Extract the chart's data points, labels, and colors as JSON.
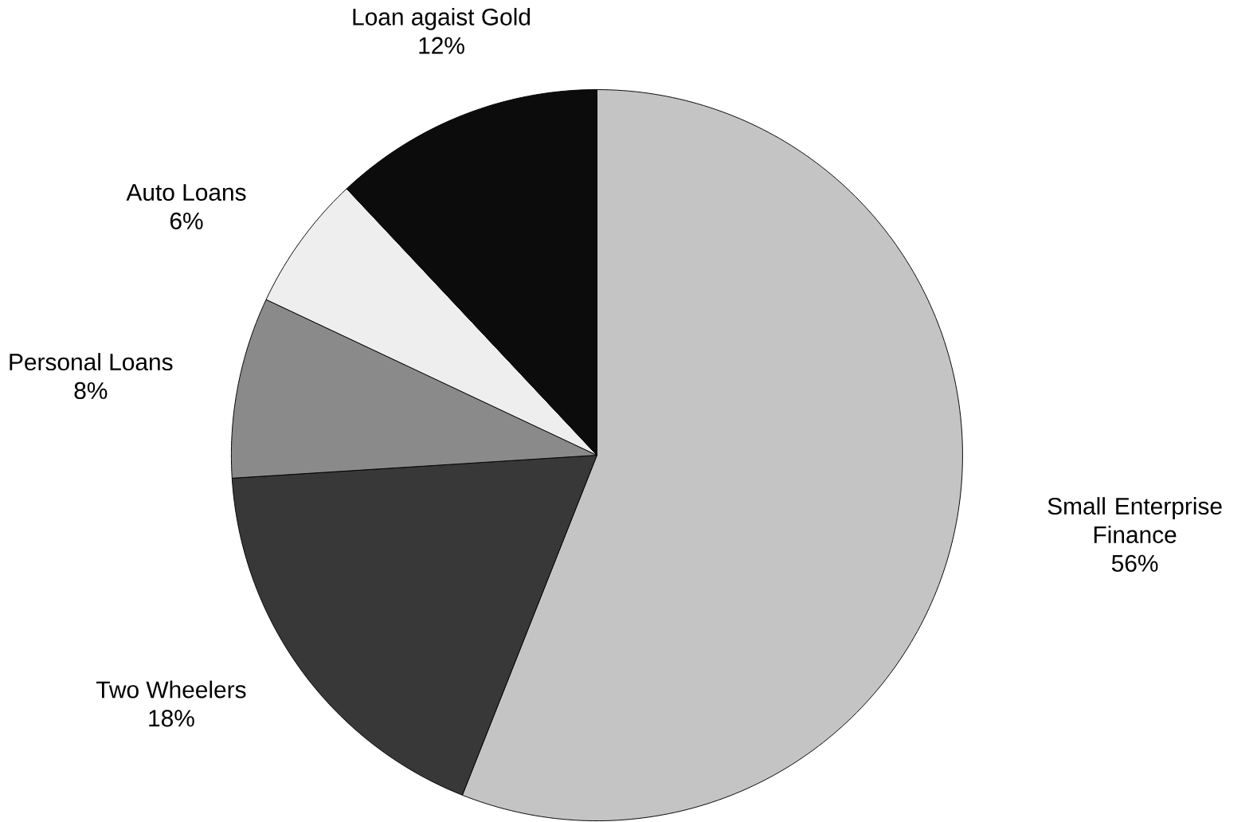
{
  "chart_data": {
    "type": "pie",
    "categories": [
      "Small Enterprise Finance",
      "Two Wheelers",
      "Personal Loans",
      "Auto Loans",
      "Loan agaist Gold"
    ],
    "values": [
      56,
      18,
      8,
      6,
      12
    ],
    "value_labels": [
      "56%",
      "18%",
      "8%",
      "6%",
      "12%"
    ],
    "colors": [
      "#c4c4c4",
      "#383838",
      "#8a8a8a",
      "#eeeeee",
      "#0c0c0c"
    ]
  }
}
